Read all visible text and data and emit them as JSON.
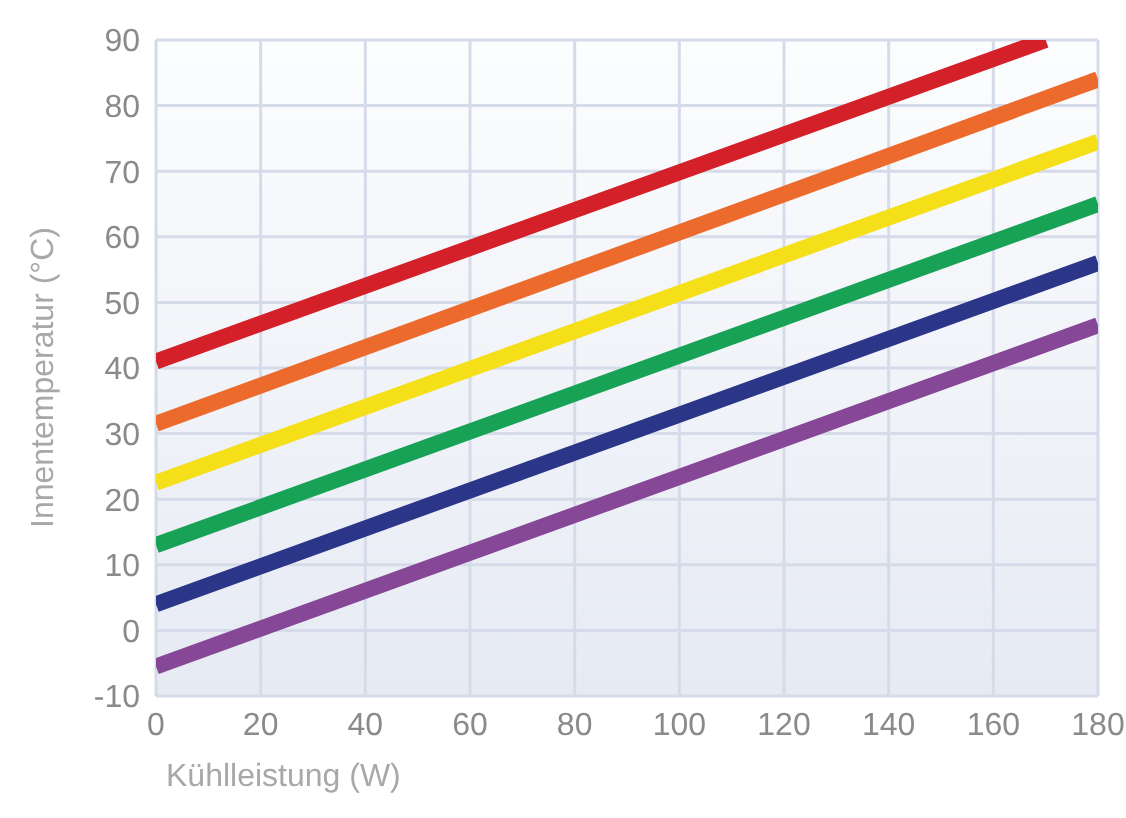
{
  "chart_data": {
    "type": "line",
    "xlabel": "Kühlleistung (W)",
    "ylabel": "Innentemperatur (°C)",
    "xlim": [
      0,
      180
    ],
    "xticks": [
      0,
      20,
      40,
      60,
      80,
      100,
      120,
      140,
      160,
      180
    ],
    "ylim": [
      -10,
      90
    ],
    "yticks": [
      -10,
      0,
      10,
      20,
      30,
      40,
      50,
      60,
      70,
      80,
      90
    ],
    "grid": true,
    "marker": "none",
    "line_style": "solid",
    "series": [
      {
        "color": "#d42028",
        "x": [
          0,
          170
        ],
        "values": [
          41,
          90
        ]
      },
      {
        "color": "#ec6a2b",
        "x": [
          0,
          180
        ],
        "values": [
          31.5,
          84
        ]
      },
      {
        "color": "#f5df18",
        "x": [
          0,
          180
        ],
        "values": [
          22.5,
          74.5
        ]
      },
      {
        "color": "#18a255",
        "x": [
          0,
          180
        ],
        "values": [
          13,
          65
        ]
      },
      {
        "color": "#2b3689",
        "x": [
          0,
          180
        ],
        "values": [
          4,
          56
        ]
      },
      {
        "color": "#864896",
        "x": [
          0,
          180
        ],
        "values": [
          -5.5,
          46.5
        ]
      }
    ]
  }
}
